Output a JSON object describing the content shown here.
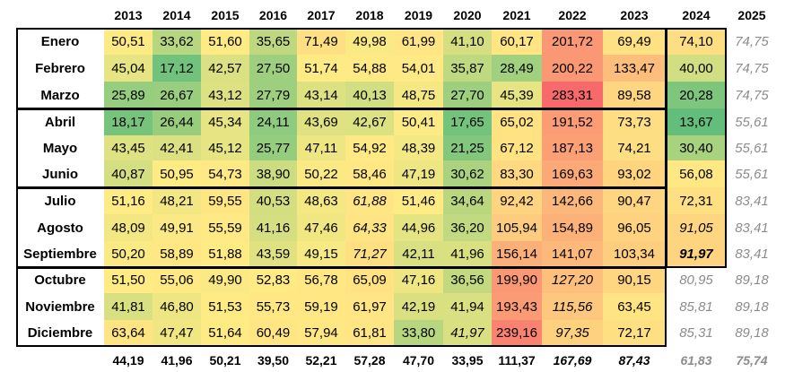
{
  "years": [
    "2013",
    "2014",
    "2015",
    "2016",
    "2017",
    "2018",
    "2019",
    "2020",
    "2021",
    "2022",
    "2023",
    "2024",
    "2025"
  ],
  "months": [
    "Enero",
    "Febrero",
    "Marzo",
    "Abril",
    "Mayo",
    "Junio",
    "Julio",
    "Agosto",
    "Septiembre",
    "Octubre",
    "Noviembre",
    "Diciembre"
  ],
  "values": [
    [
      "50,51",
      "33,62",
      "51,60",
      "35,65",
      "71,49",
      "49,98",
      "61,99",
      "41,10",
      "60,17",
      "201,72",
      "69,49",
      "74,10",
      "74,75"
    ],
    [
      "45,04",
      "17,12",
      "42,57",
      "27,50",
      "51,74",
      "54,88",
      "54,01",
      "35,87",
      "28,49",
      "200,22",
      "133,47",
      "40,00",
      "74,75"
    ],
    [
      "25,89",
      "26,67",
      "43,12",
      "27,79",
      "43,14",
      "40,13",
      "48,75",
      "27,70",
      "45,39",
      "283,31",
      "89,58",
      "20,28",
      "74,75"
    ],
    [
      "18,17",
      "26,44",
      "45,34",
      "24,11",
      "43,69",
      "42,67",
      "50,41",
      "17,65",
      "65,02",
      "191,52",
      "73,73",
      "13,67",
      "55,61"
    ],
    [
      "43,45",
      "42,41",
      "45,12",
      "25,77",
      "47,11",
      "54,92",
      "48,39",
      "21,25",
      "67,12",
      "187,13",
      "74,21",
      "30,40",
      "55,61"
    ],
    [
      "40,87",
      "50,95",
      "54,73",
      "38,90",
      "50,22",
      "58,46",
      "47,19",
      "30,62",
      "83,30",
      "169,63",
      "93,02",
      "56,08",
      "55,61"
    ],
    [
      "51,16",
      "48,21",
      "59,55",
      "40,53",
      "48,63",
      "61,88",
      "51,46",
      "34,64",
      "92,42",
      "142,66",
      "90,47",
      "72,31",
      "83,41"
    ],
    [
      "48,09",
      "49,91",
      "55,59",
      "41,16",
      "47,46",
      "64,33",
      "44,96",
      "36,20",
      "105,94",
      "154,89",
      "96,05",
      "91,05",
      "83,41"
    ],
    [
      "50,20",
      "58,89",
      "51,88",
      "43,59",
      "49,15",
      "71,27",
      "42,11",
      "41,96",
      "156,14",
      "141,07",
      "103,34",
      "91,97",
      "83,41"
    ],
    [
      "51,50",
      "55,06",
      "49,90",
      "52,83",
      "56,78",
      "65,09",
      "47,16",
      "36,56",
      "199,90",
      "127,20",
      "90,15",
      "80,95",
      "89,18"
    ],
    [
      "41,81",
      "46,80",
      "51,53",
      "55,73",
      "59,19",
      "61,97",
      "42,19",
      "41,94",
      "193,43",
      "115,56",
      "63,45",
      "85,81",
      "89,18"
    ],
    [
      "63,64",
      "47,47",
      "51,64",
      "60,49",
      "57,94",
      "61,81",
      "33,80",
      "41,97",
      "239,16",
      "97,35",
      "72,17",
      "85,31",
      "89,18"
    ]
  ],
  "totals": [
    "44,19",
    "41,96",
    "50,21",
    "39,50",
    "52,21",
    "57,28",
    "47,70",
    "33,95",
    "111,37",
    "167,69",
    "87,43",
    "61,83",
    "75,74"
  ],
  "colors": {
    "low": "#63be7b",
    "mid": "#ffeb84",
    "high": "#f8696b",
    "estimate_text": "#8c8c8c"
  },
  "italic_cells": [
    [
      6,
      5
    ],
    [
      7,
      5
    ],
    [
      8,
      5
    ],
    [
      9,
      9
    ],
    [
      10,
      9
    ],
    [
      11,
      9
    ],
    [
      11,
      7
    ],
    [
      7,
      11
    ],
    [
      8,
      11
    ],
    [
      0,
      12
    ],
    [
      1,
      12
    ],
    [
      2,
      12
    ],
    [
      3,
      12
    ],
    [
      4,
      12
    ],
    [
      5,
      12
    ],
    [
      6,
      12
    ],
    [
      7,
      12
    ],
    [
      8,
      12
    ],
    [
      9,
      12
    ],
    [
      10,
      12
    ],
    [
      11,
      12
    ],
    [
      9,
      11
    ],
    [
      10,
      11
    ],
    [
      11,
      11
    ]
  ],
  "gray_cells": [
    [
      0,
      12
    ],
    [
      1,
      12
    ],
    [
      2,
      12
    ],
    [
      3,
      12
    ],
    [
      4,
      12
    ],
    [
      5,
      12
    ],
    [
      6,
      12
    ],
    [
      7,
      12
    ],
    [
      8,
      12
    ],
    [
      9,
      12
    ],
    [
      10,
      12
    ],
    [
      11,
      12
    ],
    [
      9,
      11
    ],
    [
      10,
      11
    ],
    [
      11,
      11
    ]
  ],
  "bold_cells": [
    [
      8,
      11
    ]
  ],
  "italic_totals": [
    9,
    10,
    11,
    12
  ],
  "gray_totals": [
    11,
    12
  ]
}
